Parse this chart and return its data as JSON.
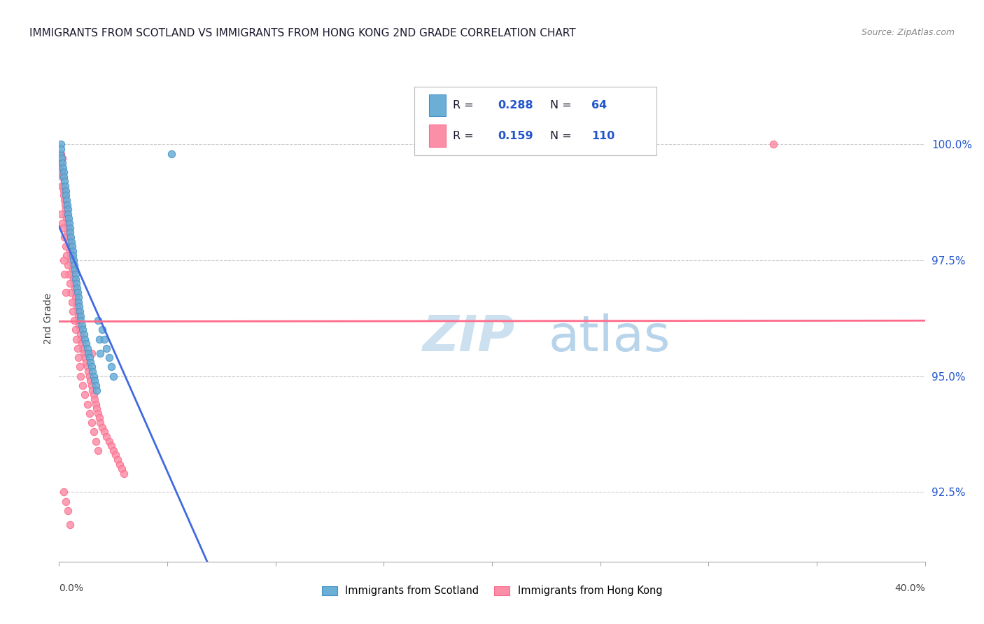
{
  "title": "IMMIGRANTS FROM SCOTLAND VS IMMIGRANTS FROM HONG KONG 2ND GRADE CORRELATION CHART",
  "source": "Source: ZipAtlas.com",
  "ylabel": "2nd Grade",
  "yaxis_values": [
    92.5,
    95.0,
    97.5,
    100.0
  ],
  "xaxis_range": [
    0.0,
    40.0
  ],
  "yaxis_range": [
    91.0,
    101.5
  ],
  "scotland_color": "#6baed6",
  "scotland_edge": "#4292c6",
  "hongkong_color": "#fc8fa8",
  "hongkong_edge": "#fb6a8a",
  "scotland_R": 0.288,
  "scotland_N": 64,
  "hongkong_R": 0.159,
  "hongkong_N": 110,
  "trendline_scotland_color": "#4169e1",
  "trendline_hongkong_color": "#ff6b8a",
  "watermark_zip_color": "#cce0f0",
  "watermark_atlas_color": "#b8d4eb",
  "legend_label_color": "#1a1a2e",
  "legend_value_color": "#2255cc",
  "scotland_x": [
    0.05,
    0.08,
    0.1,
    0.12,
    0.15,
    0.18,
    0.2,
    0.22,
    0.25,
    0.28,
    0.3,
    0.32,
    0.35,
    0.38,
    0.4,
    0.42,
    0.45,
    0.48,
    0.5,
    0.52,
    0.55,
    0.58,
    0.6,
    0.62,
    0.65,
    0.68,
    0.7,
    0.72,
    0.75,
    0.78,
    0.8,
    0.82,
    0.85,
    0.88,
    0.9,
    0.92,
    0.95,
    0.98,
    1.0,
    1.05,
    1.1,
    1.15,
    1.2,
    1.25,
    1.3,
    1.35,
    1.4,
    1.45,
    1.5,
    1.55,
    1.6,
    1.65,
    1.7,
    1.75,
    1.8,
    1.85,
    1.9,
    2.0,
    2.1,
    2.2,
    2.3,
    2.4,
    2.5,
    5.2
  ],
  "scotland_y": [
    99.8,
    100.0,
    99.9,
    99.7,
    99.6,
    99.5,
    99.4,
    99.3,
    99.2,
    99.1,
    99.0,
    98.9,
    98.8,
    98.7,
    98.6,
    98.5,
    98.4,
    98.3,
    98.2,
    98.1,
    98.0,
    97.9,
    97.8,
    97.7,
    97.6,
    97.5,
    97.4,
    97.3,
    97.2,
    97.1,
    97.0,
    96.9,
    96.8,
    96.7,
    96.6,
    96.5,
    96.4,
    96.3,
    96.2,
    96.1,
    96.0,
    95.9,
    95.8,
    95.7,
    95.6,
    95.5,
    95.4,
    95.3,
    95.2,
    95.1,
    95.0,
    94.9,
    94.8,
    94.7,
    96.2,
    95.8,
    95.5,
    96.0,
    95.8,
    95.6,
    95.4,
    95.2,
    95.0,
    99.8
  ],
  "hongkong_x": [
    0.05,
    0.08,
    0.1,
    0.12,
    0.15,
    0.18,
    0.2,
    0.22,
    0.25,
    0.28,
    0.3,
    0.32,
    0.35,
    0.38,
    0.4,
    0.42,
    0.45,
    0.48,
    0.5,
    0.52,
    0.55,
    0.58,
    0.6,
    0.62,
    0.65,
    0.68,
    0.7,
    0.72,
    0.75,
    0.78,
    0.8,
    0.82,
    0.85,
    0.88,
    0.9,
    0.92,
    0.95,
    0.98,
    1.0,
    1.05,
    1.1,
    1.15,
    1.2,
    1.25,
    1.3,
    1.35,
    1.4,
    1.45,
    1.5,
    1.55,
    1.6,
    1.65,
    1.7,
    1.75,
    1.8,
    1.85,
    1.9,
    2.0,
    2.1,
    2.2,
    2.3,
    2.4,
    2.5,
    2.6,
    2.7,
    2.8,
    2.9,
    3.0,
    0.1,
    0.15,
    0.2,
    0.25,
    0.3,
    0.35,
    0.4,
    0.45,
    0.5,
    0.55,
    0.6,
    0.65,
    0.7,
    0.75,
    0.8,
    0.85,
    0.9,
    0.95,
    1.0,
    1.1,
    1.2,
    1.3,
    1.4,
    1.5,
    1.6,
    1.7,
    1.8,
    0.2,
    0.3,
    0.4,
    0.5,
    0.2,
    0.25,
    0.3,
    0.15,
    0.1,
    0.12,
    1.5,
    33.0
  ],
  "hongkong_y": [
    99.5,
    99.8,
    99.6,
    99.4,
    99.3,
    99.1,
    99.0,
    98.9,
    98.8,
    98.7,
    98.6,
    98.5,
    98.4,
    98.3,
    98.2,
    98.1,
    98.0,
    97.9,
    97.8,
    97.7,
    97.6,
    97.5,
    97.4,
    97.3,
    97.2,
    97.1,
    97.0,
    96.9,
    96.8,
    96.7,
    96.6,
    96.5,
    96.4,
    96.3,
    96.2,
    96.1,
    96.0,
    95.9,
    95.8,
    95.7,
    95.6,
    95.5,
    95.4,
    95.3,
    95.2,
    95.1,
    95.0,
    94.9,
    94.8,
    94.7,
    94.6,
    94.5,
    94.4,
    94.3,
    94.2,
    94.1,
    94.0,
    93.9,
    93.8,
    93.7,
    93.6,
    93.5,
    93.4,
    93.3,
    93.2,
    93.1,
    93.0,
    92.9,
    98.5,
    98.3,
    98.2,
    98.0,
    97.8,
    97.6,
    97.4,
    97.2,
    97.0,
    96.8,
    96.6,
    96.4,
    96.2,
    96.0,
    95.8,
    95.6,
    95.4,
    95.2,
    95.0,
    94.8,
    94.6,
    94.4,
    94.2,
    94.0,
    93.8,
    93.6,
    93.4,
    92.5,
    92.3,
    92.1,
    91.8,
    97.5,
    97.2,
    96.8,
    99.7,
    99.4,
    99.1,
    95.5,
    100.0
  ]
}
